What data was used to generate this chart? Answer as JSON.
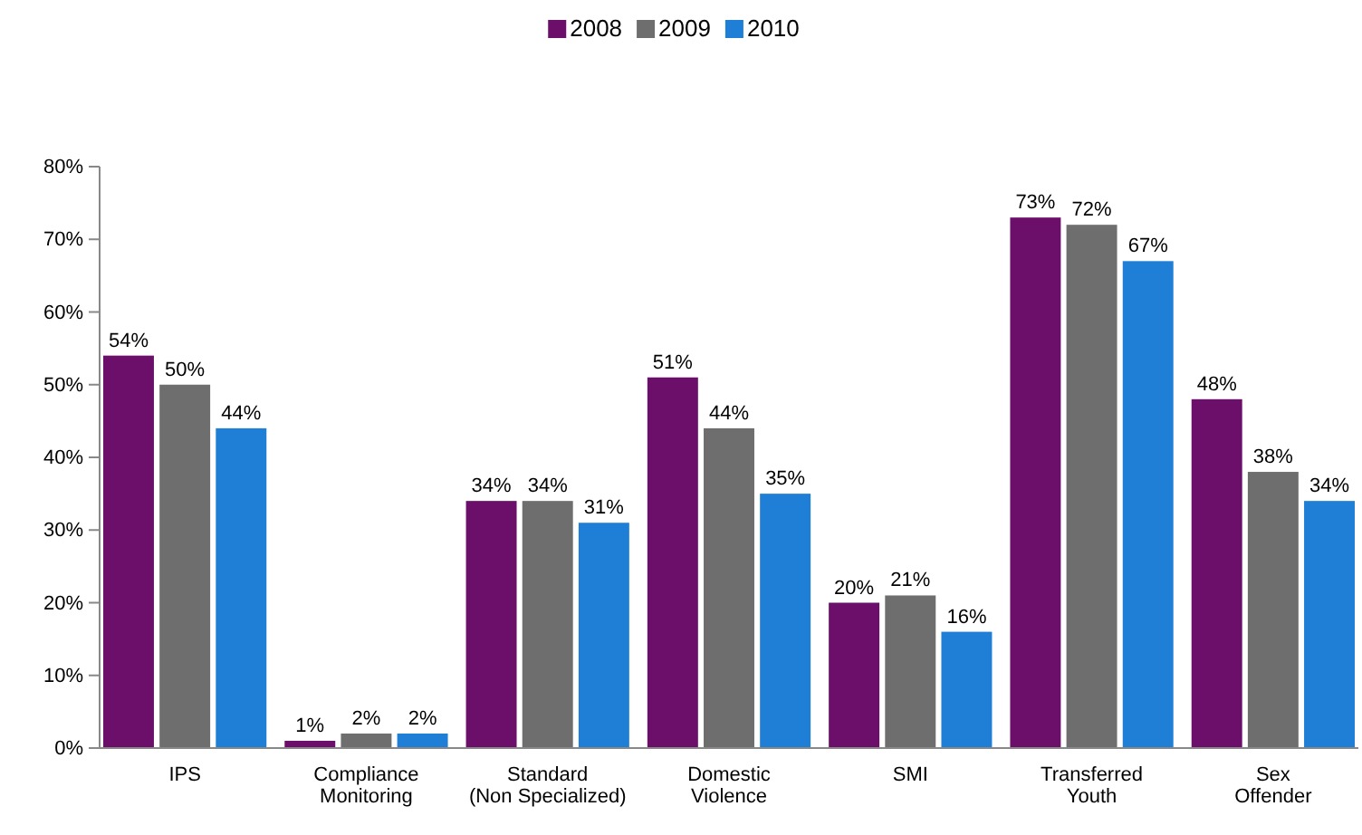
{
  "chart_data": {
    "type": "bar",
    "categories": [
      "IPS",
      "Compliance Monitoring",
      "Standard (Non Specialized)",
      "Domestic Violence",
      "SMI",
      "Transferred Youth",
      "Sex Offender"
    ],
    "series": [
      {
        "name": "2008",
        "color": "#6b0f6b",
        "values": [
          54,
          1,
          34,
          51,
          20,
          73,
          48
        ],
        "value_labels": [
          "54%",
          "1%",
          "34%",
          "51%",
          "20%",
          "73%",
          "48%"
        ]
      },
      {
        "name": "2009",
        "color": "#6e6e6e",
        "values": [
          50,
          2,
          34,
          44,
          21,
          72,
          38
        ],
        "value_labels": [
          "50%",
          "2%",
          "34%",
          "44%",
          "21%",
          "72%",
          "38%"
        ]
      },
      {
        "name": "2010",
        "color": "#1f7fd6",
        "values": [
          44,
          2,
          31,
          35,
          16,
          67,
          34
        ],
        "value_labels": [
          "44%",
          "2%",
          "31%",
          "35%",
          "16%",
          "67%",
          "34%"
        ]
      }
    ],
    "ylim": [
      0,
      80
    ],
    "yticks": [
      {
        "value": 0,
        "label": "0%"
      },
      {
        "value": 10,
        "label": "10%"
      },
      {
        "value": 20,
        "label": "20%"
      },
      {
        "value": 30,
        "label": "30%"
      },
      {
        "value": 40,
        "label": "40%"
      },
      {
        "value": 50,
        "label": "50%"
      },
      {
        "value": 60,
        "label": "60%"
      },
      {
        "value": 70,
        "label": "70%"
      },
      {
        "value": 80,
        "label": "80%"
      }
    ],
    "legend": "top",
    "grid": false
  }
}
